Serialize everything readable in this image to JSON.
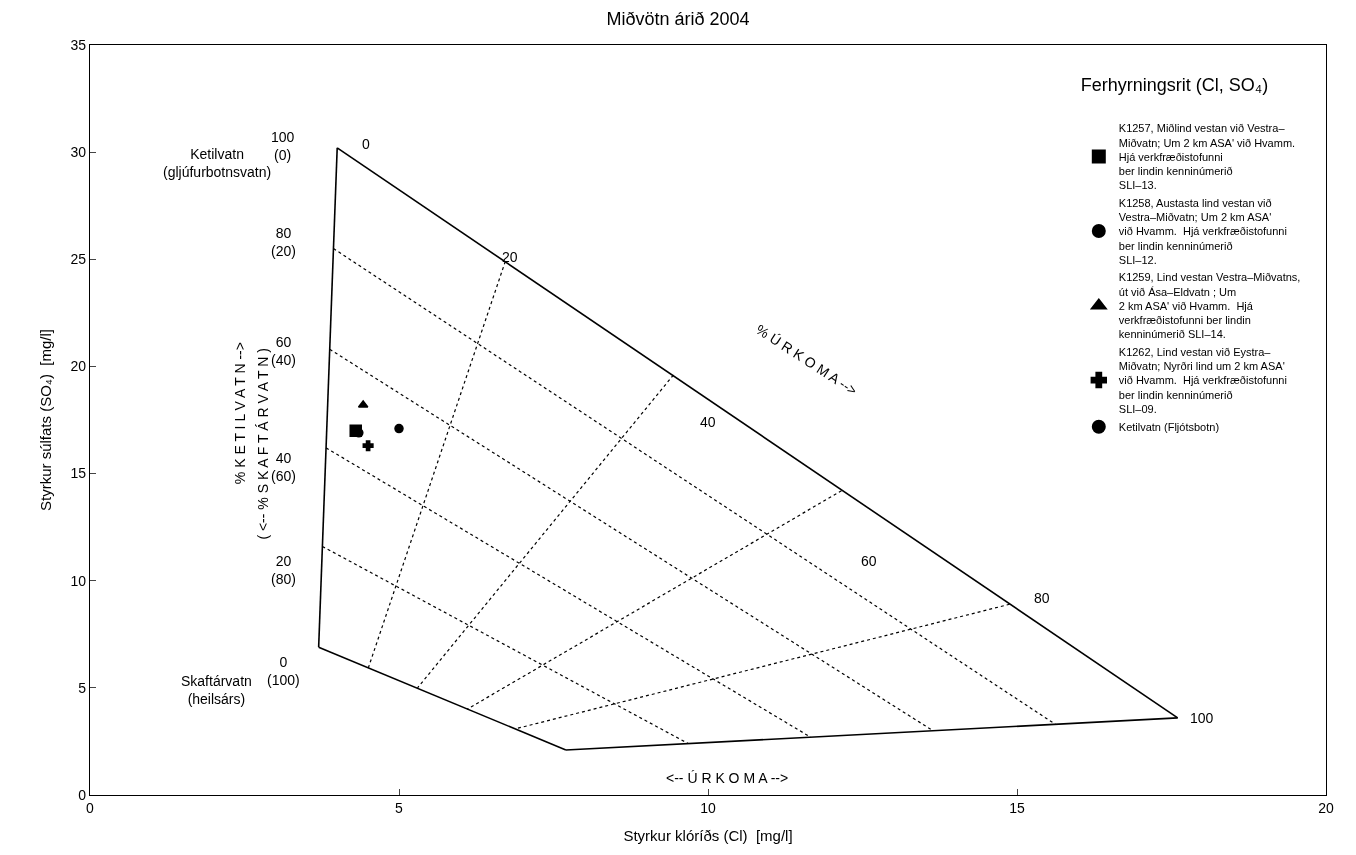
{
  "chart_data": {
    "type": "scatter",
    "title": "Miðvötn árið 2004",
    "xlabel": "Styrkur klóríðs (Cl)  [mg/l]",
    "ylabel": "Styrkur súlfats (SO₄)  [mg/l]",
    "legend_title": "Ferhyrningsrit (Cl, SO₄)",
    "xlim": [
      0,
      20
    ],
    "xticks": [
      0,
      5,
      10,
      15,
      20
    ],
    "ylim": [
      0,
      35
    ],
    "yticks": [
      0,
      5,
      10,
      15,
      20,
      25,
      30,
      35
    ],
    "legend": "top right",
    "series": [
      {
        "type": "line",
        "color": "#000000",
        "line_style": "dotted",
        "marker": "none",
        "x": [
          3.94,
          15.62,
          null,
          3.88,
          13.64,
          null,
          3.82,
          11.66,
          null,
          3.76,
          9.68,
          null,
          6.72,
          4.5,
          null,
          9.44,
          5.3,
          null,
          12.16,
          6.1,
          null,
          14.88,
          6.9
        ],
        "values": [
          25.5,
          3.3,
          null,
          20.8,
          3.0,
          null,
          16.2,
          2.7,
          null,
          11.6,
          2.4,
          null,
          24.9,
          5.9,
          null,
          19.6,
          5.0,
          null,
          14.2,
          4.0,
          null,
          8.9,
          3.1
        ]
      },
      {
        "type": "line",
        "color": "#000000",
        "line_style": "solid",
        "marker": "none",
        "x": [
          4.0,
          17.6,
          null,
          17.6,
          7.7,
          null,
          7.7,
          3.7,
          null,
          3.7,
          4.0
        ],
        "values": [
          30.2,
          3.6,
          null,
          3.6,
          2.1,
          null,
          2.1,
          6.9,
          null,
          6.9,
          30.2
        ]
      },
      {
        "name": "K1257, Miðlind vestan við Vestra–\nMiðvatn; Um 2 km ASA' við Hvamm.\nHjá verkfræðistofunni\nber lindin kenninúmerið\nSLI–13.",
        "color": "#000000",
        "marker": "square",
        "x": [
          4.3
        ],
        "values": [
          17.0
        ]
      },
      {
        "name": "K1258, Austasta lind vestan við\nVestra–Miðvatn; Um 2 km ASA'\nvið Hvamm.  Hjá verkfræðistofunni\nber lindin kenninúmerið\nSLI–12.",
        "color": "#000000",
        "marker": "circle",
        "x": [
          4.35
        ],
        "values": [
          16.9
        ]
      },
      {
        "name": "K1259, Lind vestan Vestra–Miðvatns,\nút við Ása–Eldvatn ; Um\n2 km ASA' við Hvamm.  Hjá\nverkfræðistofunni ber lindin\nkenninúmerið SLI–14.",
        "color": "#000000",
        "marker": "triangle",
        "x": [
          4.42
        ],
        "values": [
          18.2
        ]
      },
      {
        "name": "K1262, Lind vestan við Eystra–\nMiðvatn; Nyrðri lind um 2 km ASA'\nvið Hvamm.  Hjá verkfræðistofunni\nber lindin kenninúmerið\nSLI–09.",
        "color": "#000000",
        "marker": "cross",
        "x": [
          4.5
        ],
        "values": [
          16.3
        ]
      },
      {
        "name": "Ketilvatn (Fljótsbotn)",
        "color": "#000000",
        "marker": "circle",
        "x": [
          5.0
        ],
        "values": [
          17.1
        ]
      }
    ],
    "annotations": [
      "0",
      "20",
      "40",
      "60",
      "80",
      "100",
      "100\n(0)",
      "80\n(20)",
      "60\n(40)",
      "40\n(60)",
      "20\n(80)",
      "0\n(100)",
      "Ketilvatn\n(gljúfurbotnsvatn)",
      "Skaftárvatn\n(heilsárs)",
      "% Ú R K O M A -->",
      "<-- Ú R K O M A -->",
      "% K E T I L V A T N -->",
      "( <-- % S K A F T Á R V A T N )"
    ]
  }
}
